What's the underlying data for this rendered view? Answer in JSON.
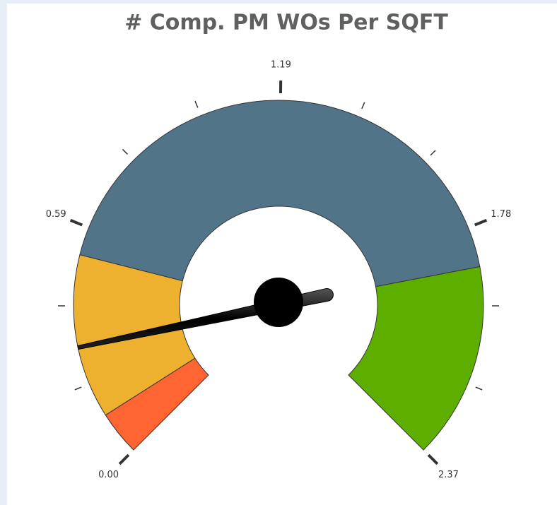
{
  "chart_data": {
    "type": "gauge",
    "title": "# Comp. PM WOs Per SQFT",
    "range": [
      0,
      2.37
    ],
    "ticks": [
      {
        "value": 0,
        "label": "0.00"
      },
      0.59,
      1.19,
      1.78,
      2.37
    ],
    "bands": [
      {
        "from": 0,
        "to": 0.11,
        "color": "#ff6533"
      },
      {
        "from": 0.11,
        "to": 0.52,
        "color": "#edb12f"
      },
      {
        "from": 0.52,
        "to": 1.88,
        "color": "#517489"
      },
      {
        "from": 1.88,
        "to": 2.37,
        "color": "#5eae00"
      }
    ],
    "value": 0.29
  }
}
